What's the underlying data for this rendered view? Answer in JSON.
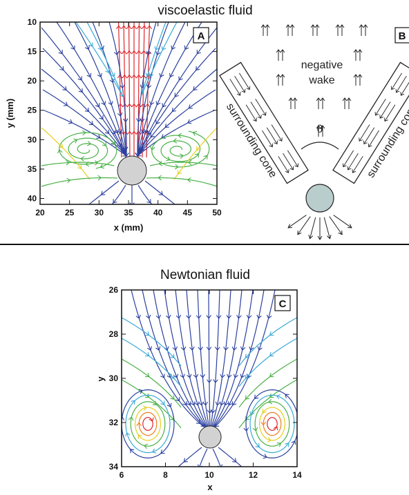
{
  "top_title": "viscoelastic fluid",
  "bottom_title": "Newtonian fluid",
  "panels": {
    "A": {
      "letter": "A",
      "xlabel": "x (mm)",
      "ylabel": "y (mm)",
      "xticks": [
        "20",
        "25",
        "30",
        "35",
        "40",
        "45",
        "50"
      ],
      "yticks": [
        "10",
        "15",
        "20",
        "25",
        "30",
        "35",
        "40"
      ],
      "xlim": [
        20,
        50
      ],
      "ylim": [
        10,
        41
      ]
    },
    "B": {
      "letter": "B",
      "negative": "negative",
      "wake": "wake",
      "theta": "θ",
      "cone_left": "surrounding cone",
      "cone_right": "surrounding cone"
    },
    "C": {
      "letter": "C",
      "xlabel": "x",
      "ylabel": "y",
      "xticks": [
        "6",
        "8",
        "10",
        "12",
        "14"
      ],
      "yticks": [
        "26",
        "28",
        "30",
        "32",
        "34"
      ],
      "xlim": [
        6,
        14
      ],
      "ylim": [
        26,
        34
      ]
    }
  },
  "colors": {
    "cool": "#2a3f9e",
    "mid": "#39a9d6",
    "green": "#49b046",
    "yellow": "#e3cf1e",
    "orange": "#f07e1c",
    "red": "#e0242a",
    "sphere": "#d2d2d2",
    "schematic_sphere": "#b9cdcc"
  }
}
